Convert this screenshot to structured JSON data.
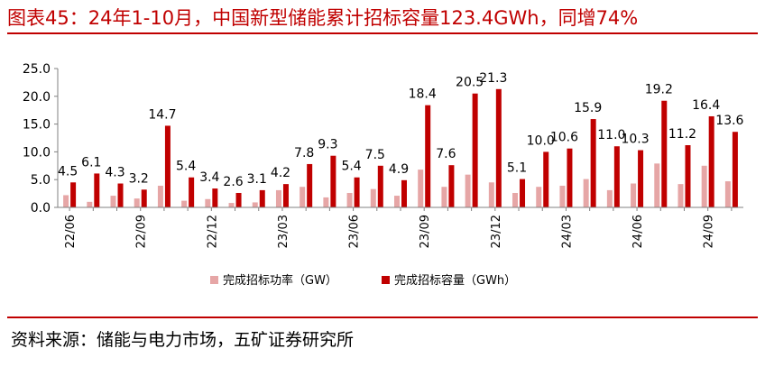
{
  "title": "图表45：24年1-10月，中国新型储能累计招标容量123.4GWh，同增74%",
  "source": "资料来源：储能与电力市场，五矿证券研究所",
  "colors": {
    "accent": "#c00000",
    "power": "#e6a6a6",
    "capacity": "#c00000"
  },
  "chart_data": {
    "type": "bar",
    "ylim": [
      0,
      25
    ],
    "yticks": [
      "0.0",
      "5.0",
      "10.0",
      "15.0",
      "20.0",
      "25.0"
    ],
    "categories": [
      "22/06",
      "22/07",
      "22/08",
      "22/09",
      "22/10",
      "22/11",
      "22/12",
      "23/01",
      "23/02",
      "23/03",
      "23/04",
      "23/05",
      "23/06",
      "23/07",
      "23/08",
      "23/09",
      "23/10",
      "23/11",
      "23/12",
      "24/01",
      "24/02",
      "24/03",
      "24/04",
      "24/05",
      "24/06",
      "24/07",
      "24/08",
      "24/09",
      "24/10"
    ],
    "xtick_labels": [
      "22/06",
      "",
      "",
      "22/09",
      "",
      "",
      "22/12",
      "",
      "",
      "23/03",
      "",
      "",
      "23/06",
      "",
      "",
      "23/09",
      "",
      "",
      "23/12",
      "",
      "",
      "24/03",
      "",
      "",
      "24/06",
      "",
      "",
      "24/09",
      ""
    ],
    "series": [
      {
        "name": "完成招标功率（GW）",
        "values": [
          2.2,
          1.0,
          2.1,
          1.6,
          3.9,
          1.2,
          1.5,
          0.8,
          0.9,
          3.1,
          3.7,
          1.8,
          2.6,
          3.3,
          2.1,
          6.8,
          3.7,
          5.9,
          4.5,
          2.6,
          3.7,
          3.9,
          5.1,
          3.1,
          4.3,
          7.9,
          4.2,
          7.5,
          4.7
        ]
      },
      {
        "name": "完成招标容量（GWh）",
        "values": [
          4.5,
          6.1,
          4.3,
          3.2,
          14.7,
          5.4,
          3.4,
          2.6,
          3.1,
          4.2,
          7.8,
          9.3,
          5.4,
          7.5,
          4.9,
          18.4,
          7.6,
          20.5,
          21.3,
          5.1,
          10.0,
          10.6,
          15.9,
          11.0,
          10.3,
          19.2,
          11.2,
          16.4,
          13.6
        ],
        "labels": [
          "4.5",
          "6.1",
          "4.3",
          "3.2",
          "14.7",
          "5.4",
          "3.4",
          "2.6",
          "3.1",
          "4.2",
          "7.8",
          "9.3",
          "5.4",
          "7.5",
          "4.9",
          "18.4",
          "7.6",
          "20.5",
          "21.3",
          "5.1",
          "10.0",
          "10.6",
          "15.9",
          "11.0",
          "10.3",
          "19.2",
          "11.2",
          "16.4",
          "13.6"
        ]
      }
    ],
    "legend_placement": "bottom",
    "grid": false
  }
}
